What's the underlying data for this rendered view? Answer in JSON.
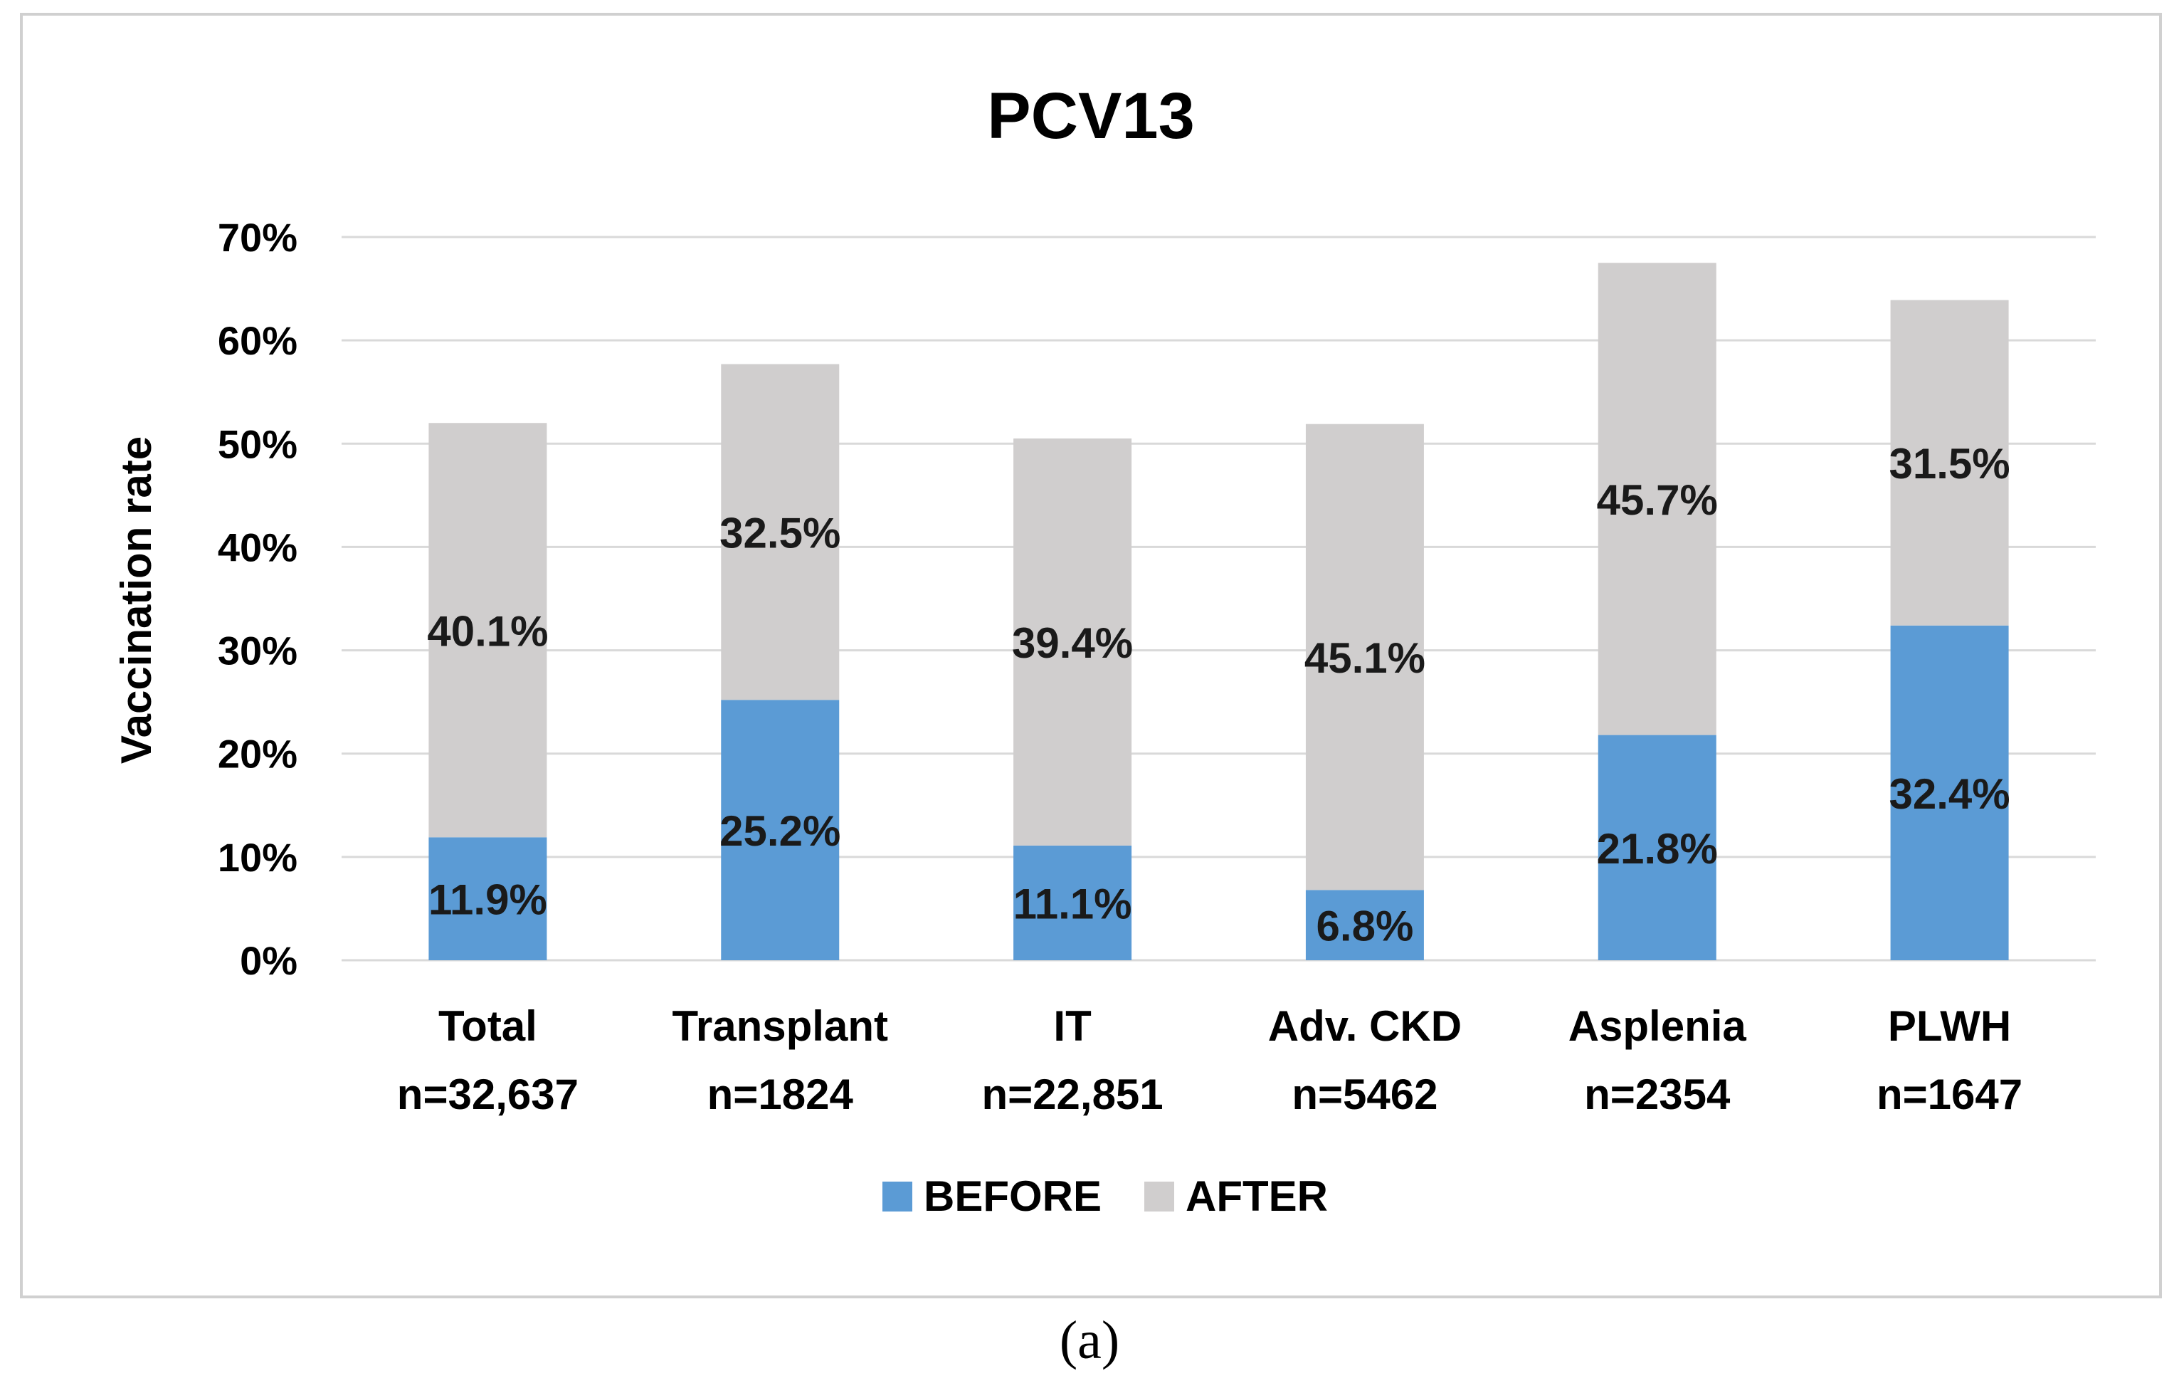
{
  "caption": "(a)",
  "chart_data": {
    "type": "bar",
    "stacked": true,
    "title": "PCV13",
    "ylabel": "Vaccination rate",
    "xlabel": "",
    "ylim": [
      0,
      70
    ],
    "yticks": [
      0,
      10,
      20,
      30,
      40,
      50,
      60,
      70
    ],
    "ytick_labels": [
      "0%",
      "10%",
      "20%",
      "30%",
      "40%",
      "50%",
      "60%",
      "70%"
    ],
    "grid": true,
    "legend_position": "bottom",
    "categories": [
      {
        "name": "Total",
        "n": "n=32,637"
      },
      {
        "name": "Transplant",
        "n": "n=1824"
      },
      {
        "name": "IT",
        "n": "n=22,851"
      },
      {
        "name": "Adv. CKD",
        "n": "n=5462"
      },
      {
        "name": "Asplenia",
        "n": "n=2354"
      },
      {
        "name": "PLWH",
        "n": "n=1647"
      }
    ],
    "series": [
      {
        "name": "BEFORE",
        "color": "#5b9bd5",
        "values": [
          11.9,
          25.2,
          11.1,
          6.8,
          21.8,
          32.4
        ],
        "labels": [
          "11.9%",
          "25.2%",
          "11.1%",
          "6.8%",
          "21.8%",
          "32.4%"
        ]
      },
      {
        "name": "AFTER",
        "color": "#d0cece",
        "values": [
          40.1,
          32.5,
          39.4,
          45.1,
          45.7,
          31.5
        ],
        "labels": [
          "40.1%",
          "32.5%",
          "39.4%",
          "45.1%",
          "45.7%",
          "31.5%"
        ]
      }
    ],
    "gridline_color": "#d9d9d9"
  }
}
